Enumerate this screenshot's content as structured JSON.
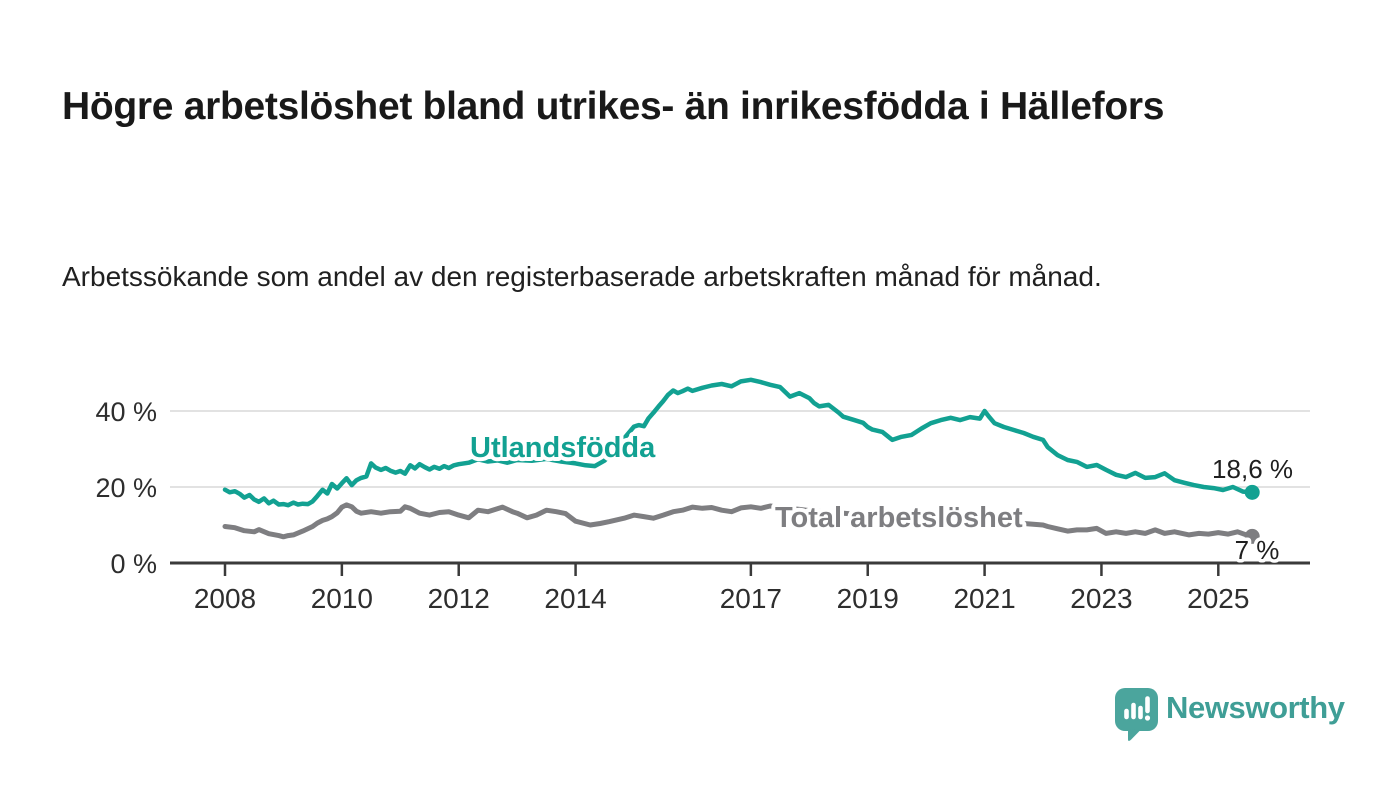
{
  "header": {
    "title": "Högre arbetslöshet bland utrikes- än inrikesfödda i Hällefors",
    "subtitle": "Arbetssökande som andel av den registerbaserade arbetskraften månad för månad."
  },
  "chart_data": {
    "type": "line",
    "x_unit": "year (decimal = monthly samples)",
    "xlim": [
      2007.1,
      2026.6
    ],
    "ylim": [
      0,
      52
    ],
    "x_ticks": [
      2008,
      2010,
      2012,
      2014,
      2017,
      2019,
      2021,
      2023,
      2025
    ],
    "y_ticks": [
      {
        "value": 0,
        "label": "0 %"
      },
      {
        "value": 20,
        "label": "20 %"
      },
      {
        "value": 40,
        "label": "40 %"
      }
    ],
    "grid": "horizontal gridlines at 20 % and 40 %, dark baseline at 0 %",
    "legend_position": "inline labels on lines, value labels at line ends",
    "colors": {
      "grid": "#d9d9d9",
      "axis": "#3a3a3a",
      "tick_text": "#2e2e2e",
      "end_label_text": "#1f1f1f"
    },
    "series": [
      {
        "name": "Utlandsfödda",
        "color": "#12a192",
        "end_label": "18,6 %",
        "end_value": 18.6,
        "points": [
          [
            2008.0,
            19.3
          ],
          [
            2008.08,
            18.6
          ],
          [
            2008.17,
            18.9
          ],
          [
            2008.25,
            18.2
          ],
          [
            2008.33,
            17.2
          ],
          [
            2008.42,
            17.9
          ],
          [
            2008.5,
            16.7
          ],
          [
            2008.58,
            16.1
          ],
          [
            2008.67,
            17.0
          ],
          [
            2008.75,
            15.7
          ],
          [
            2008.83,
            16.4
          ],
          [
            2008.92,
            15.4
          ],
          [
            2009.0,
            15.5
          ],
          [
            2009.08,
            15.2
          ],
          [
            2009.17,
            15.9
          ],
          [
            2009.25,
            15.4
          ],
          [
            2009.33,
            15.6
          ],
          [
            2009.42,
            15.5
          ],
          [
            2009.5,
            16.2
          ],
          [
            2009.58,
            17.6
          ],
          [
            2009.67,
            19.3
          ],
          [
            2009.75,
            18.3
          ],
          [
            2009.83,
            20.8
          ],
          [
            2009.92,
            19.6
          ],
          [
            2010.0,
            21.0
          ],
          [
            2010.08,
            22.3
          ],
          [
            2010.17,
            20.5
          ],
          [
            2010.25,
            21.8
          ],
          [
            2010.33,
            22.4
          ],
          [
            2010.42,
            22.8
          ],
          [
            2010.5,
            26.2
          ],
          [
            2010.58,
            25.1
          ],
          [
            2010.67,
            24.5
          ],
          [
            2010.75,
            25.0
          ],
          [
            2010.83,
            24.3
          ],
          [
            2010.92,
            23.8
          ],
          [
            2011.0,
            24.2
          ],
          [
            2011.08,
            23.5
          ],
          [
            2011.17,
            25.7
          ],
          [
            2011.25,
            24.9
          ],
          [
            2011.33,
            26.0
          ],
          [
            2011.42,
            25.2
          ],
          [
            2011.5,
            24.6
          ],
          [
            2011.58,
            25.3
          ],
          [
            2011.67,
            24.8
          ],
          [
            2011.75,
            25.5
          ],
          [
            2011.83,
            25.0
          ],
          [
            2011.92,
            25.7
          ],
          [
            2012.0,
            26.0
          ],
          [
            2012.17,
            26.4
          ],
          [
            2012.33,
            27.3
          ],
          [
            2012.5,
            26.7
          ],
          [
            2012.67,
            27.0
          ],
          [
            2012.83,
            26.4
          ],
          [
            2013.0,
            27.1
          ],
          [
            2013.25,
            26.9
          ],
          [
            2013.5,
            27.4
          ],
          [
            2013.75,
            26.7
          ],
          [
            2014.0,
            26.2
          ],
          [
            2014.17,
            25.7
          ],
          [
            2014.33,
            25.5
          ],
          [
            2014.5,
            27.0
          ],
          [
            2014.67,
            29.8
          ],
          [
            2014.83,
            32.8
          ],
          [
            2015.0,
            35.9
          ],
          [
            2015.08,
            36.3
          ],
          [
            2015.17,
            36.0
          ],
          [
            2015.25,
            38.1
          ],
          [
            2015.33,
            39.5
          ],
          [
            2015.42,
            41.2
          ],
          [
            2015.5,
            42.6
          ],
          [
            2015.58,
            44.2
          ],
          [
            2015.67,
            45.4
          ],
          [
            2015.75,
            44.7
          ],
          [
            2015.83,
            45.2
          ],
          [
            2015.92,
            45.9
          ],
          [
            2016.0,
            45.3
          ],
          [
            2016.17,
            46.1
          ],
          [
            2016.33,
            46.7
          ],
          [
            2016.5,
            47.1
          ],
          [
            2016.67,
            46.5
          ],
          [
            2016.83,
            47.8
          ],
          [
            2017.0,
            48.2
          ],
          [
            2017.17,
            47.6
          ],
          [
            2017.33,
            46.9
          ],
          [
            2017.5,
            46.3
          ],
          [
            2017.67,
            43.8
          ],
          [
            2017.83,
            44.7
          ],
          [
            2018.0,
            43.4
          ],
          [
            2018.08,
            42.1
          ],
          [
            2018.17,
            41.2
          ],
          [
            2018.33,
            41.6
          ],
          [
            2018.5,
            39.6
          ],
          [
            2018.58,
            38.5
          ],
          [
            2018.75,
            37.7
          ],
          [
            2018.92,
            36.9
          ],
          [
            2019.0,
            35.8
          ],
          [
            2019.08,
            35.1
          ],
          [
            2019.25,
            34.5
          ],
          [
            2019.42,
            32.4
          ],
          [
            2019.58,
            33.2
          ],
          [
            2019.75,
            33.7
          ],
          [
            2019.92,
            35.4
          ],
          [
            2020.08,
            36.8
          ],
          [
            2020.25,
            37.6
          ],
          [
            2020.42,
            38.2
          ],
          [
            2020.58,
            37.6
          ],
          [
            2020.75,
            38.4
          ],
          [
            2020.92,
            38.0
          ],
          [
            2021.0,
            40.0
          ],
          [
            2021.08,
            38.4
          ],
          [
            2021.17,
            36.8
          ],
          [
            2021.33,
            35.8
          ],
          [
            2021.5,
            35.0
          ],
          [
            2021.67,
            34.2
          ],
          [
            2021.83,
            33.2
          ],
          [
            2022.0,
            32.4
          ],
          [
            2022.08,
            30.5
          ],
          [
            2022.25,
            28.4
          ],
          [
            2022.42,
            27.1
          ],
          [
            2022.58,
            26.6
          ],
          [
            2022.75,
            25.3
          ],
          [
            2022.92,
            25.8
          ],
          [
            2023.08,
            24.5
          ],
          [
            2023.25,
            23.2
          ],
          [
            2023.42,
            22.6
          ],
          [
            2023.58,
            23.7
          ],
          [
            2023.75,
            22.4
          ],
          [
            2023.92,
            22.6
          ],
          [
            2024.08,
            23.6
          ],
          [
            2024.25,
            21.8
          ],
          [
            2024.42,
            21.1
          ],
          [
            2024.58,
            20.5
          ],
          [
            2024.75,
            20.0
          ],
          [
            2024.92,
            19.7
          ],
          [
            2025.08,
            19.2
          ],
          [
            2025.25,
            20.0
          ],
          [
            2025.42,
            18.8
          ],
          [
            2025.58,
            18.6
          ]
        ]
      },
      {
        "name": "Total arbetslöshet",
        "color": "#7e7e81",
        "end_label": "7 %",
        "end_value": 7,
        "points": [
          [
            2008.0,
            9.6
          ],
          [
            2008.17,
            9.3
          ],
          [
            2008.33,
            8.5
          ],
          [
            2008.5,
            8.2
          ],
          [
            2008.58,
            8.8
          ],
          [
            2008.75,
            7.7
          ],
          [
            2008.92,
            7.2
          ],
          [
            2009.0,
            6.9
          ],
          [
            2009.08,
            7.2
          ],
          [
            2009.17,
            7.4
          ],
          [
            2009.33,
            8.4
          ],
          [
            2009.5,
            9.6
          ],
          [
            2009.58,
            10.5
          ],
          [
            2009.67,
            11.2
          ],
          [
            2009.75,
            11.6
          ],
          [
            2009.83,
            12.2
          ],
          [
            2009.92,
            13.2
          ],
          [
            2010.0,
            14.7
          ],
          [
            2010.08,
            15.3
          ],
          [
            2010.17,
            14.8
          ],
          [
            2010.25,
            13.6
          ],
          [
            2010.33,
            13.1
          ],
          [
            2010.5,
            13.5
          ],
          [
            2010.67,
            13.1
          ],
          [
            2010.83,
            13.5
          ],
          [
            2011.0,
            13.6
          ],
          [
            2011.08,
            14.8
          ],
          [
            2011.17,
            14.4
          ],
          [
            2011.33,
            13.1
          ],
          [
            2011.5,
            12.6
          ],
          [
            2011.67,
            13.3
          ],
          [
            2011.83,
            13.5
          ],
          [
            2012.0,
            12.6
          ],
          [
            2012.17,
            11.9
          ],
          [
            2012.33,
            13.9
          ],
          [
            2012.5,
            13.5
          ],
          [
            2012.75,
            14.7
          ],
          [
            2012.92,
            13.5
          ],
          [
            2013.0,
            13.1
          ],
          [
            2013.17,
            11.9
          ],
          [
            2013.33,
            12.6
          ],
          [
            2013.5,
            13.9
          ],
          [
            2013.67,
            13.5
          ],
          [
            2013.83,
            13.0
          ],
          [
            2014.0,
            11.0
          ],
          [
            2014.25,
            10.0
          ],
          [
            2014.42,
            10.4
          ],
          [
            2014.58,
            10.9
          ],
          [
            2014.83,
            11.8
          ],
          [
            2015.0,
            12.6
          ],
          [
            2015.17,
            12.2
          ],
          [
            2015.33,
            11.8
          ],
          [
            2015.5,
            12.6
          ],
          [
            2015.67,
            13.5
          ],
          [
            2015.83,
            13.9
          ],
          [
            2016.0,
            14.7
          ],
          [
            2016.17,
            14.4
          ],
          [
            2016.33,
            14.6
          ],
          [
            2016.5,
            13.9
          ],
          [
            2016.67,
            13.5
          ],
          [
            2016.83,
            14.5
          ],
          [
            2017.0,
            14.8
          ],
          [
            2017.17,
            14.4
          ],
          [
            2017.33,
            15.0
          ],
          [
            2017.58,
            14.5
          ],
          [
            2017.83,
            14.1
          ],
          [
            2018.0,
            13.8
          ],
          [
            2018.33,
            13.4
          ],
          [
            2018.67,
            13.0
          ],
          [
            2019.0,
            12.4
          ],
          [
            2019.33,
            12.0
          ],
          [
            2019.67,
            11.8
          ],
          [
            2020.0,
            12.4
          ],
          [
            2020.33,
            12.8
          ],
          [
            2020.67,
            12.2
          ],
          [
            2021.0,
            11.6
          ],
          [
            2021.33,
            11.0
          ],
          [
            2021.67,
            10.4
          ],
          [
            2022.0,
            10.0
          ],
          [
            2022.08,
            9.6
          ],
          [
            2022.25,
            9.0
          ],
          [
            2022.42,
            8.4
          ],
          [
            2022.58,
            8.7
          ],
          [
            2022.75,
            8.7
          ],
          [
            2022.92,
            9.1
          ],
          [
            2023.08,
            7.8
          ],
          [
            2023.25,
            8.2
          ],
          [
            2023.42,
            7.8
          ],
          [
            2023.58,
            8.2
          ],
          [
            2023.75,
            7.8
          ],
          [
            2023.92,
            8.7
          ],
          [
            2024.08,
            7.8
          ],
          [
            2024.25,
            8.2
          ],
          [
            2024.5,
            7.4
          ],
          [
            2024.67,
            7.8
          ],
          [
            2024.83,
            7.6
          ],
          [
            2025.0,
            8.0
          ],
          [
            2025.17,
            7.6
          ],
          [
            2025.33,
            8.2
          ],
          [
            2025.5,
            7.3
          ],
          [
            2025.58,
            7.0
          ]
        ]
      }
    ]
  },
  "footer": {
    "brand": "Newsworthy",
    "logo_icon": "speech-bubble-bar-chart-exclamation",
    "logo_color": "#4ba59d"
  }
}
